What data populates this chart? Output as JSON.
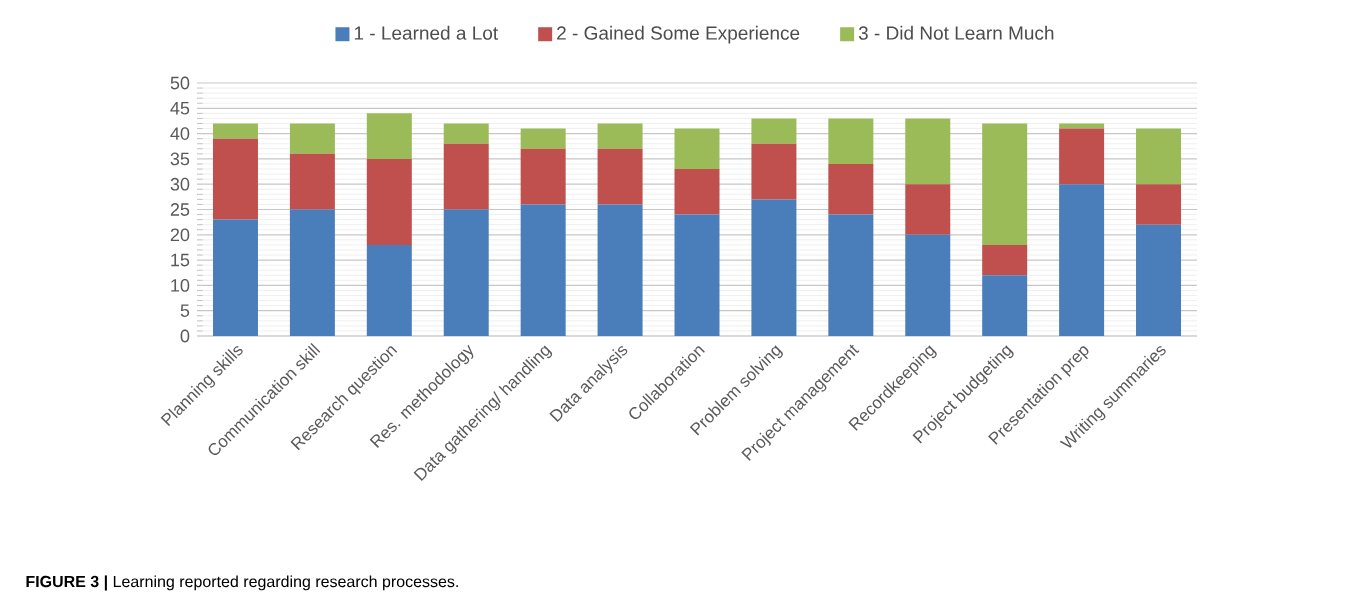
{
  "chart_data": {
    "type": "bar",
    "stacked": true,
    "categories": [
      "Planning skills",
      "Communication skill",
      "Research question",
      "Res. methodology",
      "Data gathering/ handling",
      "Data analysis",
      "Collaboration",
      "Problem solving",
      "Project management",
      "Recordkeeping",
      "Project budgeting",
      "Presentation prep",
      "Writing summaries"
    ],
    "series": [
      {
        "name": "1 - Learned a Lot",
        "color": "#4a7ebb",
        "values": [
          23,
          25,
          18,
          25,
          26,
          26,
          24,
          27,
          24,
          20,
          12,
          30,
          22
        ]
      },
      {
        "name": "2 - Gained Some Experience",
        "color": "#c0504d",
        "values": [
          16,
          11,
          17,
          13,
          11,
          11,
          9,
          11,
          10,
          10,
          6,
          11,
          8
        ]
      },
      {
        "name": "3 - Did Not Learn Much",
        "color": "#9bbb59",
        "values": [
          3,
          6,
          9,
          4,
          4,
          5,
          8,
          5,
          9,
          13,
          24,
          1,
          11
        ]
      }
    ],
    "ylim": [
      0,
      50
    ],
    "yticks": [
      0,
      5,
      10,
      15,
      20,
      25,
      30,
      35,
      40,
      45,
      50
    ],
    "grid": "y",
    "legend": "top",
    "annotations": [
      "**FIGURE 3 |** Learning reported regarding research processes."
    ]
  }
}
